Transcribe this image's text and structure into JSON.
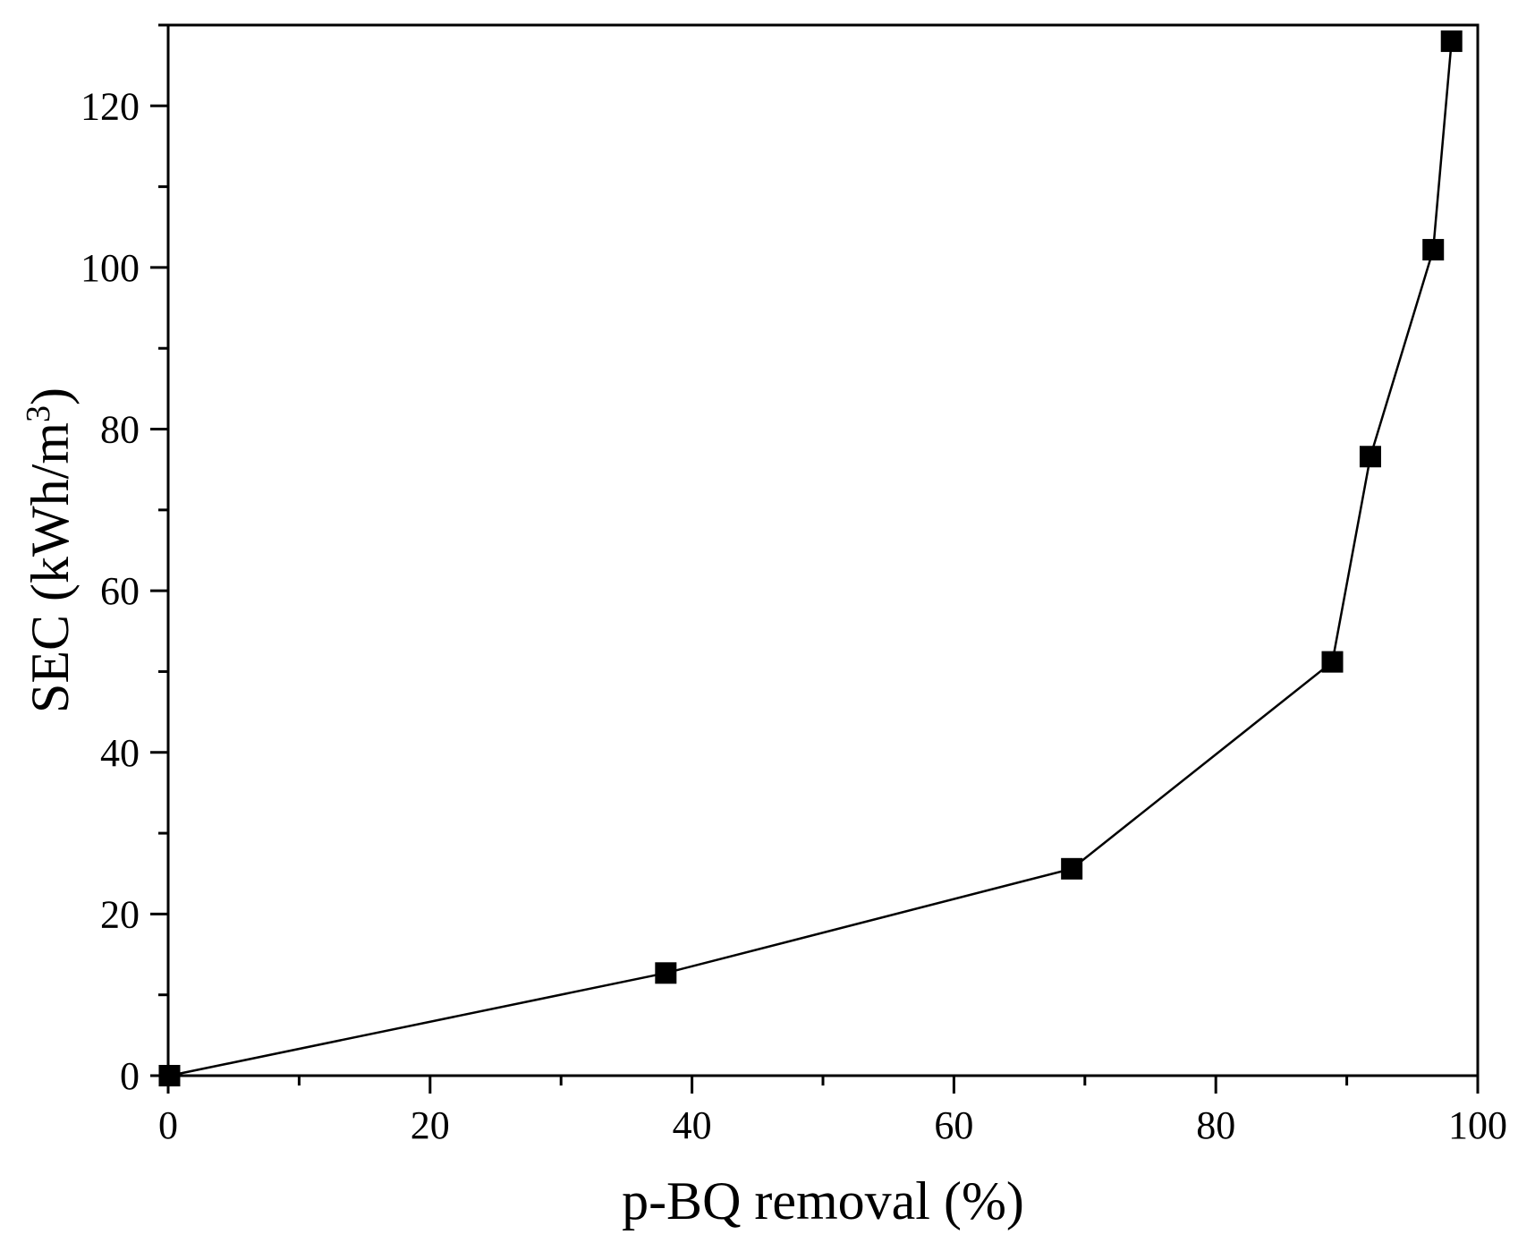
{
  "chart_data": {
    "type": "line",
    "title": "",
    "xlabel": "p-BQ removal (%)",
    "ylabel_prefix": "SEC (kWh/m",
    "ylabel_sup": "3",
    "ylabel_suffix": ")",
    "xlim": [
      0,
      100
    ],
    "ylim": [
      0,
      130
    ],
    "x_ticks": [
      0,
      20,
      40,
      60,
      80,
      100
    ],
    "x_tick_labels": [
      "0",
      "20",
      "40",
      "60",
      "80",
      "100"
    ],
    "y_ticks": [
      0,
      20,
      40,
      60,
      80,
      100,
      120
    ],
    "y_tick_labels": [
      "0",
      "20",
      "40",
      "60",
      "80",
      "100",
      "120"
    ],
    "grid": false,
    "legend": "none",
    "series": [
      {
        "marker": "square",
        "color": "#000000",
        "x": [
          0.1,
          38.0,
          69.0,
          88.9,
          91.8,
          96.6,
          98.0
        ],
        "y": [
          0.0,
          12.7,
          25.6,
          51.2,
          76.6,
          102.2,
          128.0
        ]
      }
    ]
  }
}
